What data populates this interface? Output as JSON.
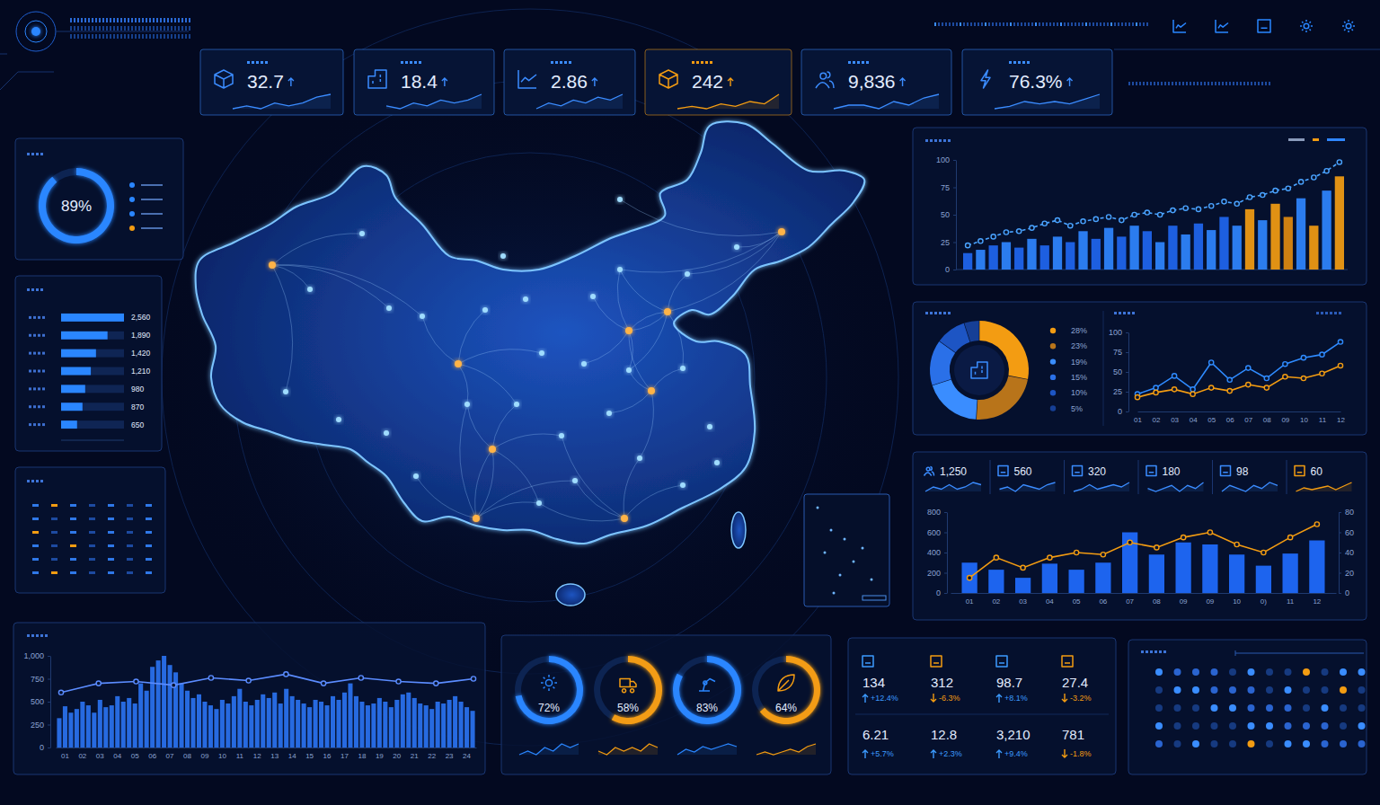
{
  "kpis": [
    {
      "value": "32.7",
      "color": "#3b8cff",
      "trend": [
        4,
        5,
        4,
        6,
        5,
        6,
        8,
        9
      ]
    },
    {
      "value": "18.4",
      "color": "#3b8cff",
      "trend": [
        5,
        4,
        6,
        5,
        7,
        6,
        7,
        9
      ]
    },
    {
      "value": "2.86",
      "color": "#3b8cff",
      "trend": [
        3,
        5,
        4,
        6,
        5,
        7,
        6,
        8
      ]
    },
    {
      "value": "242",
      "color": "#f39c12",
      "trend": [
        3,
        4,
        3,
        5,
        4,
        6,
        5,
        9
      ]
    },
    {
      "value": "9,836",
      "color": "#3b8cff",
      "trend": [
        4,
        5,
        5,
        4,
        6,
        5,
        7,
        8
      ]
    },
    {
      "value": "76.3%",
      "color": "#3b8cff",
      "trend": [
        3,
        4,
        6,
        5,
        6,
        5,
        7,
        9
      ]
    }
  ],
  "ring": {
    "value": 89,
    "label": "89%",
    "range": [
      0,
      100
    ],
    "color": "#2a86ff"
  },
  "chart_data": [
    {
      "type": "bar",
      "orientation": "horizontal",
      "categories": [
        null,
        null,
        null,
        null,
        null,
        null,
        null
      ],
      "values": [
        2560,
        1890,
        1420,
        1210,
        980,
        870,
        650
      ],
      "value_labels": [
        "2,560",
        "1,890",
        "1,420",
        "1,210",
        "980",
        "870",
        "650"
      ],
      "data_labels": true,
      "xlim": [
        0,
        2560
      ],
      "tick_labels": false,
      "color": "#2a86ff"
    },
    {
      "type": "bar",
      "categories": [
        null,
        null,
        null,
        null,
        null,
        null,
        null,
        null,
        null,
        null,
        null,
        null,
        null,
        null,
        null,
        null,
        null,
        null,
        null,
        null,
        null,
        null,
        null,
        null,
        null,
        null,
        null,
        null,
        null,
        null
      ],
      "series": [
        {
          "type": "bar",
          "colors": [
            "#1f66f0",
            "#2f86ff",
            "#1f66f0",
            "#2f86ff",
            "#1f66f0",
            "#2f86ff",
            "#1f66f0",
            "#2f86ff",
            "#1f66f0",
            "#2f86ff",
            "#1f66f0",
            "#2f86ff",
            "#1f66f0",
            "#2f86ff",
            "#1f66f0",
            "#2f86ff",
            "#1f66f0",
            "#2f86ff",
            "#1f66f0",
            "#2f86ff",
            "#1f66f0",
            "#2f86ff",
            "#f39c12",
            "#2f86ff",
            "#f39c12",
            "#e08a10",
            "#2f86ff",
            "#f39c12",
            "#2f86ff",
            "#f39c12"
          ],
          "values": [
            15,
            18,
            22,
            25,
            20,
            28,
            22,
            30,
            25,
            35,
            28,
            38,
            30,
            40,
            35,
            25,
            40,
            32,
            42,
            36,
            48,
            40,
            55,
            45,
            60,
            48,
            65,
            40,
            72,
            85
          ]
        },
        {
          "type": "line",
          "color": "#4aa3ff",
          "line_style": "dashed",
          "marker": "circle",
          "values": [
            22,
            26,
            30,
            34,
            35,
            38,
            42,
            45,
            40,
            44,
            46,
            48,
            45,
            50,
            52,
            50,
            54,
            56,
            55,
            58,
            62,
            60,
            66,
            68,
            72,
            74,
            80,
            84,
            90,
            98
          ]
        }
      ],
      "ylim": [
        0,
        100
      ],
      "yticks": [
        0,
        25,
        50,
        75,
        100
      ],
      "tick_labels": "y"
    },
    {
      "type": "pie",
      "values": [
        28,
        23,
        19,
        15,
        10,
        5
      ],
      "value_labels": [
        "28%",
        "23%",
        "19%",
        "15%",
        "10%",
        "5%"
      ],
      "colors": [
        "#f39c12",
        "#b8741a",
        "#3a8dff",
        "#2a70e8",
        "#1d55c4",
        "#163f96"
      ],
      "legend": "right"
    },
    {
      "type": "line",
      "categories": [
        "01",
        "02",
        "03",
        "04",
        "05",
        "06",
        "07",
        "08",
        "09",
        "10",
        "11",
        "12"
      ],
      "series": [
        {
          "color": "#2f8bff",
          "marker": "circle",
          "values": [
            22,
            30,
            45,
            28,
            62,
            40,
            55,
            42,
            60,
            68,
            72,
            88
          ]
        },
        {
          "color": "#f39c12",
          "marker": "circle",
          "values": [
            18,
            24,
            28,
            22,
            30,
            26,
            34,
            30,
            44,
            42,
            48,
            58
          ]
        }
      ],
      "ylim": [
        0,
        100
      ],
      "yticks": [
        0,
        25,
        50,
        75,
        100
      ]
    },
    {
      "type": "bar",
      "categories": [
        "01",
        "02",
        "03",
        "04",
        "05",
        "06",
        "07",
        "08",
        "09",
        "09",
        "10",
        "0)",
        "11",
        "12"
      ],
      "series": [
        {
          "type": "bar",
          "color": "#1f6bff",
          "values": [
            300,
            230,
            150,
            290,
            230,
            300,
            600,
            380,
            500,
            480,
            380,
            270,
            390,
            520
          ]
        },
        {
          "type": "line",
          "color": "#f39c12",
          "marker": "circle",
          "axis": "y2",
          "values": [
            15,
            35,
            25,
            35,
            40,
            38,
            50,
            45,
            55,
            60,
            48,
            40,
            55,
            68
          ]
        }
      ],
      "ylim": [
        0,
        800
      ],
      "yticks": [
        0,
        200,
        400,
        600,
        800
      ],
      "y2lim": [
        0,
        80
      ],
      "y2ticks": [
        0,
        20,
        40,
        60,
        80
      ]
    },
    {
      "type": "bar",
      "categories": [
        null,
        "01",
        null,
        null,
        "02",
        null,
        null,
        "03",
        null,
        null,
        "04",
        null,
        null,
        "05",
        null,
        null,
        "06",
        null,
        null,
        "07",
        null,
        null,
        "08",
        null,
        null,
        "09",
        null,
        null,
        "10",
        null,
        null,
        "11",
        null,
        null,
        "12",
        null,
        null,
        "13",
        null,
        null,
        "14",
        null,
        null,
        "15",
        null,
        null,
        "16",
        null,
        null,
        "17",
        null,
        null,
        "18",
        null,
        null,
        "19",
        null,
        null,
        "20",
        null,
        null,
        "21",
        null,
        null,
        "22",
        null,
        null,
        "23",
        null,
        null,
        "24",
        null
      ],
      "values": [
        320,
        450,
        380,
        420,
        500,
        460,
        380,
        520,
        440,
        460,
        560,
        500,
        540,
        480,
        700,
        620,
        880,
        950,
        1000,
        900,
        820,
        700,
        620,
        540,
        580,
        500,
        460,
        420,
        520,
        480,
        560,
        640,
        500,
        460,
        520,
        580,
        540,
        600,
        480,
        640,
        560,
        520,
        480,
        440,
        520,
        500,
        460,
        560,
        520,
        600,
        700,
        560,
        500,
        460,
        480,
        540,
        500,
        440,
        520,
        580,
        600,
        540,
        480,
        460,
        420,
        500,
        480,
        520,
        560,
        500,
        440,
        400
      ],
      "color": "#2a72f0",
      "ylim": [
        0,
        1000
      ],
      "yticks": [
        0,
        250,
        500,
        750,
        {
          "value": 1000,
          "label": "1,000"
        }
      ]
    },
    {
      "type": "line",
      "categories": [
        null,
        null,
        null,
        null,
        null,
        null,
        null,
        null,
        null,
        null,
        null,
        null
      ],
      "values": [
        600,
        700,
        720,
        680,
        760,
        730,
        800,
        700,
        760,
        720,
        700,
        750
      ],
      "color": "#5b8cff",
      "marker": "circle",
      "ylim": [
        0,
        1000
      ],
      "tick_labels": false
    }
  ],
  "metrics": [
    {
      "value": "1,250",
      "color": "#3b8cff",
      "trend": [
        3,
        5,
        4,
        6,
        4,
        5,
        7,
        6
      ]
    },
    {
      "value": "560",
      "color": "#3b8cff",
      "trend": [
        4,
        5,
        3,
        6,
        5,
        4,
        6,
        7
      ]
    },
    {
      "value": "320",
      "color": "#3b8cff",
      "trend": [
        3,
        4,
        6,
        4,
        5,
        6,
        5,
        7
      ]
    },
    {
      "value": "180",
      "color": "#3b8cff",
      "trend": [
        5,
        4,
        5,
        6,
        4,
        6,
        5,
        7
      ]
    },
    {
      "value": "98",
      "color": "#3b8cff",
      "trend": [
        4,
        6,
        5,
        4,
        6,
        5,
        7,
        6
      ]
    },
    {
      "value": "60",
      "color": "#f39c12",
      "trend": [
        3,
        5,
        4,
        5,
        6,
        4,
        6,
        8
      ]
    }
  ],
  "gauges": [
    {
      "value": 72,
      "label": "72%",
      "range": [
        0,
        100
      ],
      "color": "#2a86ff",
      "trend": [
        3,
        4,
        3,
        5,
        4,
        6,
        5,
        6
      ]
    },
    {
      "value": 58,
      "label": "58%",
      "range": [
        0,
        100
      ],
      "color": "#f39c12",
      "trend": [
        4,
        3,
        5,
        4,
        5,
        4,
        6,
        5
      ]
    },
    {
      "value": 83,
      "label": "83%",
      "range": [
        0,
        100
      ],
      "color": "#2a86ff",
      "trend": [
        3,
        5,
        4,
        6,
        5,
        6,
        7,
        6
      ]
    },
    {
      "value": 64,
      "label": "64%",
      "range": [
        0,
        100
      ],
      "color": "#f39c12",
      "trend": [
        4,
        5,
        4,
        5,
        6,
        5,
        7,
        8
      ]
    }
  ],
  "stats": [
    {
      "value": "134",
      "change": "+12.4%"
    },
    {
      "value": "312",
      "change": "-6.3%"
    },
    {
      "value": "98.7",
      "change": "+8.1%"
    },
    {
      "value": "27.4",
      "change": "-3.2%"
    },
    {
      "value": "6.21",
      "change": "+5.7%"
    },
    {
      "value": "12.8",
      "change": "+2.3%"
    },
    {
      "value": "3,210",
      "change": "+9.4%"
    },
    {
      "value": "781",
      "change": "-1.8%"
    }
  ]
}
